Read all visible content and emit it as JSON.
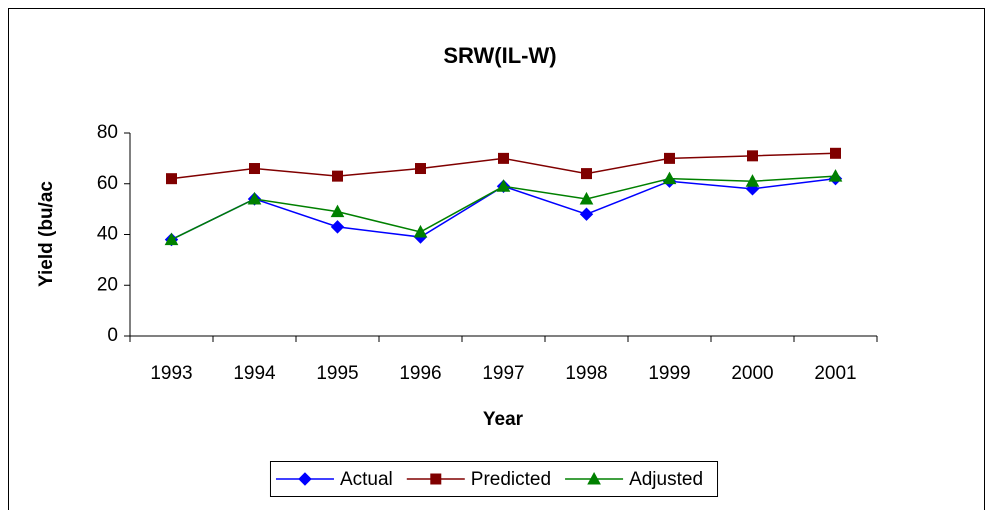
{
  "chart_data": {
    "type": "line",
    "title": "SRW(IL-W)",
    "x_label": "Year",
    "y_label": "Yield (bu/ac",
    "categories": [
      "1993",
      "1994",
      "1995",
      "1996",
      "1997",
      "1998",
      "1999",
      "2000",
      "2001"
    ],
    "series": [
      {
        "name": "Actual",
        "color": "#0000ff",
        "marker": "diamond",
        "values": [
          38,
          54,
          43,
          39,
          59,
          48,
          61,
          58,
          62
        ]
      },
      {
        "name": "Predicted",
        "color": "#800000",
        "marker": "square",
        "values": [
          62,
          66,
          63,
          66,
          70,
          64,
          70,
          71,
          72
        ]
      },
      {
        "name": "Adjusted",
        "color": "#008000",
        "marker": "triangle",
        "values": [
          38,
          54,
          49,
          41,
          59,
          54,
          62,
          61,
          63
        ]
      }
    ],
    "ylim": [
      0,
      80
    ],
    "yticks": [
      0,
      20,
      40,
      60,
      80
    ],
    "grid": false,
    "legend": "bottom"
  }
}
